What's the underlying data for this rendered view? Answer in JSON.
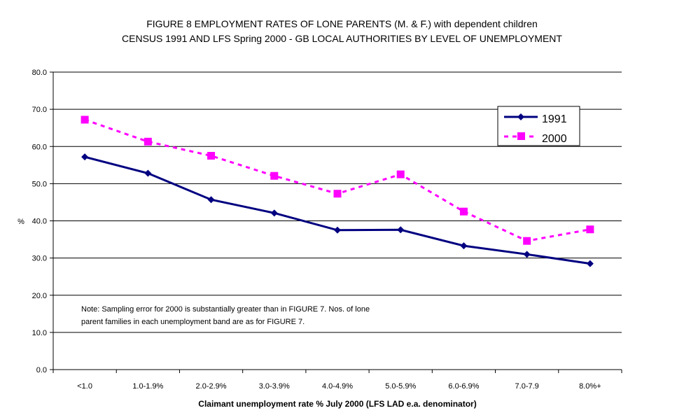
{
  "chart_data": {
    "type": "line",
    "title": "FIGURE 8  EMPLOYMENT RATES OF LONE PARENTS (M. & F.) with dependent children",
    "subtitle": "CENSUS 1991 AND LFS Spring 2000 - GB LOCAL AUTHORITIES BY LEVEL OF UNEMPLOYMENT",
    "xlabel": "Claimant unemployment rate % July 2000 (LFS LAD e.a. denominator)",
    "ylabel": "%",
    "ylim": [
      0,
      80
    ],
    "yticks": [
      "0.0",
      "10.0",
      "20.0",
      "30.0",
      "40.0",
      "50.0",
      "60.0",
      "70.0",
      "80.0"
    ],
    "categories": [
      "<1.0",
      "1.0-1.9%",
      "2.0-2.9%",
      "3.0-3.9%",
      "4.0-4.9%",
      "5.0-5.9%",
      "6.0-6.9%",
      "7.0-7.9",
      "8.0%+"
    ],
    "series": [
      {
        "name": "1991",
        "color": "#000080",
        "marker": "diamond",
        "style": "solid",
        "values": [
          57.2,
          52.8,
          45.7,
          42.1,
          37.5,
          37.6,
          33.3,
          31.0,
          28.5
        ]
      },
      {
        "name": "2000",
        "color": "#ff00ff",
        "marker": "square",
        "style": "dashed",
        "values": [
          67.2,
          61.3,
          57.5,
          52.1,
          47.3,
          52.5,
          42.5,
          34.6,
          37.7
        ]
      }
    ],
    "grid": true,
    "legend": "top-right",
    "note_line1": "Note: Sampling error for 2000 is substantially greater than in FIGURE 7.  Nos. of lone",
    "note_line2": "parent families in each unemployment band are as for FIGURE 7."
  }
}
